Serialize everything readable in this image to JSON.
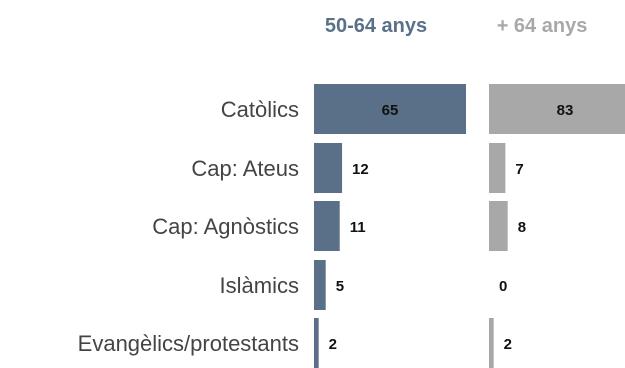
{
  "chart_data": {
    "type": "bar",
    "orientation": "horizontal",
    "layout": "small-multiples",
    "categories": [
      "Catòlics",
      "Cap: Ateus",
      "Cap: Agnòstics",
      "Islàmics",
      "Evangèlics/protestants"
    ],
    "series": [
      {
        "name": "50-64 anys",
        "values": [
          65,
          12,
          11,
          5,
          2
        ]
      },
      {
        "name": "+ 64 anys",
        "values": [
          83,
          7,
          8,
          0,
          2
        ]
      }
    ],
    "value_labels": "inside-if-fits-else-outside",
    "grid": false,
    "legend": "series titles above each panel",
    "colors": {
      "series_0": "#5a7089",
      "series_0_title": "#5a7089",
      "series_1": "#a8a8a8",
      "series_1_title": "#a8a8a8",
      "category_text": "#444444",
      "value_text": "#111111"
    }
  }
}
